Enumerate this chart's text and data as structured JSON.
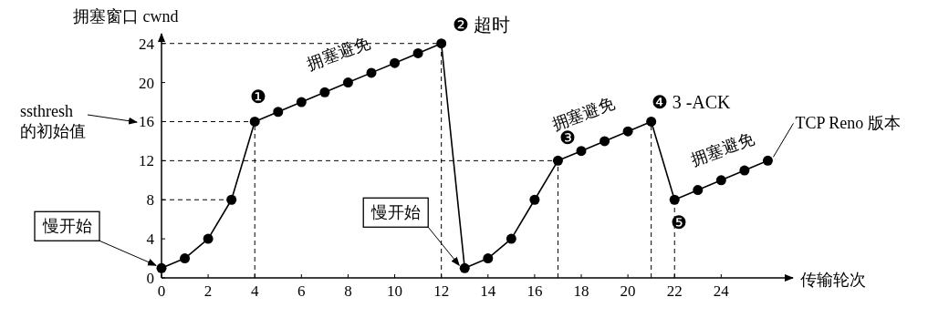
{
  "chart_data": {
    "type": "line",
    "xlabel": "传输轮次",
    "ylabel": "拥塞窗口 cwnd",
    "x": [
      0,
      1,
      2,
      3,
      4,
      5,
      6,
      7,
      8,
      9,
      10,
      11,
      12,
      13,
      14,
      15,
      16,
      17,
      18,
      19,
      20,
      21,
      22,
      23,
      24,
      25,
      26
    ],
    "series": [
      {
        "color": "#000000",
        "values": [
          1,
          2,
          4,
          8,
          16,
          17,
          18,
          19,
          20,
          21,
          22,
          23,
          24,
          1,
          2,
          4,
          8,
          12,
          13,
          14,
          15,
          16,
          8,
          9,
          10,
          11,
          12
        ]
      }
    ],
    "xlim": [
      0,
      27
    ],
    "ylim": [
      0,
      25
    ],
    "xticks": [
      0,
      2,
      4,
      6,
      8,
      10,
      12,
      14,
      16,
      18,
      20,
      22,
      24
    ],
    "yticks": [
      0,
      4,
      8,
      12,
      16,
      20,
      24
    ],
    "marker": "circle",
    "line_style": "solid",
    "grid": false,
    "ref_lines": [
      {
        "axis": "y",
        "value": 24,
        "line_style": "dashed"
      },
      {
        "axis": "y",
        "value": 16,
        "line_style": "dashed"
      },
      {
        "axis": "y",
        "value": 12,
        "line_style": "dashed"
      },
      {
        "axis": "y",
        "value": 8,
        "line_style": "dashed"
      },
      {
        "axis": "x",
        "value": 4,
        "line_style": "dashed"
      },
      {
        "axis": "x",
        "value": 12,
        "line_style": "dashed"
      },
      {
        "axis": "x",
        "value": 17,
        "line_style": "dashed"
      },
      {
        "axis": "x",
        "value": 21,
        "line_style": "dashed"
      },
      {
        "axis": "x",
        "value": 22,
        "line_style": "dashed"
      }
    ],
    "annotations": [
      {
        "text": "慢开始",
        "x": 0,
        "y": 1
      },
      {
        "text": "慢开始",
        "x": 13,
        "y": 1
      },
      {
        "text": "拥塞避免",
        "x": 8,
        "y": 20
      },
      {
        "text": "拥塞避免",
        "x": 19,
        "y": 14
      },
      {
        "text": "拥塞避免",
        "x": 24,
        "y": 10
      },
      {
        "text": "❶",
        "x": 4,
        "y": 16
      },
      {
        "text": "❷ 超时",
        "x": 12,
        "y": 24
      },
      {
        "text": "❸",
        "x": 17,
        "y": 12
      },
      {
        "text": "❹ 3 -ACK",
        "x": 21,
        "y": 16
      },
      {
        "text": "❺",
        "x": 22,
        "y": 8
      },
      "ssthresh\n的初始值",
      {
        "text": "TCP Reno 版本",
        "x": 26,
        "y": 12
      }
    ]
  }
}
